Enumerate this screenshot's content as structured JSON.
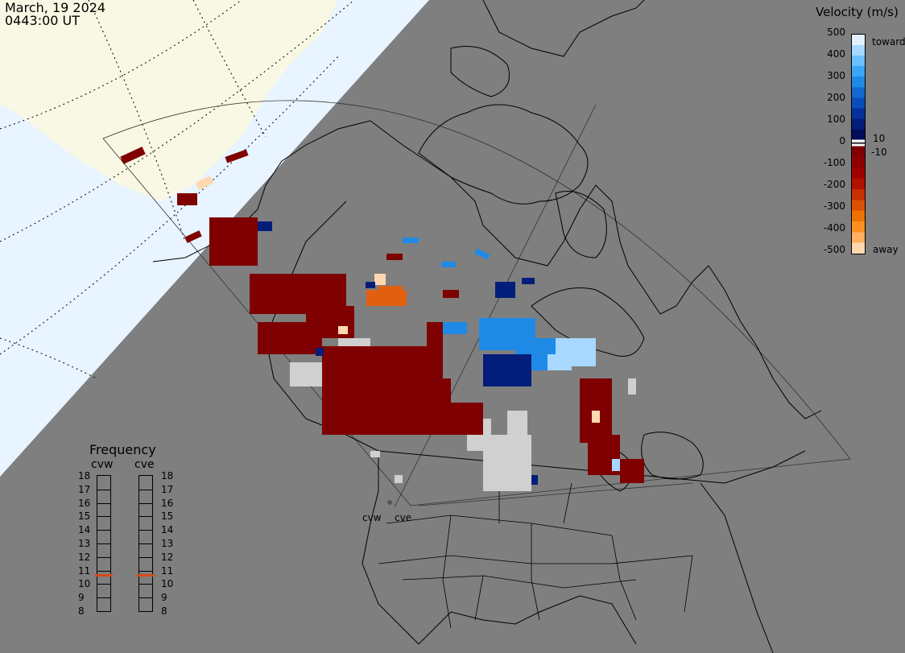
{
  "header": {
    "date": "March, 19 2024",
    "time": "0443:00 UT"
  },
  "colorbar": {
    "title": "Velocity (m/s)",
    "ticks": [
      "500",
      "400",
      "300",
      "200",
      "100",
      "0",
      "-100",
      "-200",
      "-300",
      "-400",
      "-500"
    ],
    "extra_labels": [
      "toward",
      "10",
      "-10",
      "away"
    ],
    "colors_toward": [
      "#e0f0ff",
      "#a8d8ff",
      "#6cc0ff",
      "#3aa6f5",
      "#1f8ae6",
      "#1268d0",
      "#0a4db8",
      "#06309a",
      "#031d7a",
      "#000e5a"
    ],
    "colors_away": [
      "#7f0000",
      "#8e0000",
      "#a00000",
      "#b31000",
      "#c83000",
      "#dc5000",
      "#ee7000",
      "#fb9020",
      "#ffb060",
      "#ffd8b0"
    ]
  },
  "frequency": {
    "title": "Frequency",
    "radars": [
      "cvw",
      "cve"
    ],
    "levels": [
      "18",
      "17",
      "16",
      "15",
      "14",
      "13",
      "12",
      "11",
      "10",
      "9",
      "8"
    ],
    "cvw_mhz": 10.7,
    "cve_mhz": 10.7,
    "marker_color": "#d84a1a"
  },
  "sites": [
    "cvw",
    "cve"
  ],
  "map_colors": {
    "background": "#7f7f7f",
    "sky": "#e8f4ff",
    "land_sunlit": "#f8f8e4",
    "scatter_ground": "#d0d0d0"
  }
}
